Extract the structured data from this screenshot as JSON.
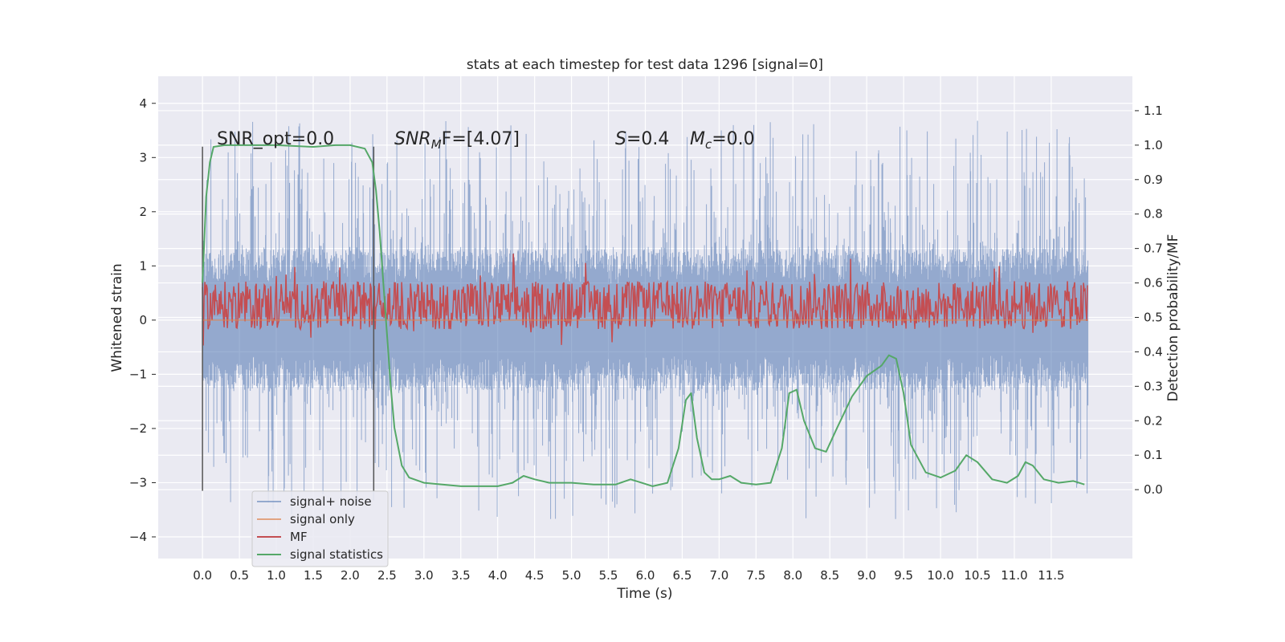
{
  "chart_data": {
    "type": "line",
    "title": "stats at each timestep for test data 1296 [signal=0]",
    "xlabel": "Time (s)",
    "ylabel": "Whitened strain",
    "y2label": "Detection probability/MF",
    "xlim": [
      -0.6,
      12.6
    ],
    "ylim": [
      -4.4,
      4.5
    ],
    "y2lim": [
      -0.2,
      1.2
    ],
    "grid": true,
    "legend_position": "lower-left",
    "x_ticks": [
      "0.0",
      "0.5",
      "1.0",
      "1.5",
      "2.0",
      "2.5",
      "3.0",
      "3.5",
      "4.0",
      "4.5",
      "5.0",
      "5.5",
      "6.0",
      "6.5",
      "7.0",
      "7.5",
      "8.0",
      "8.5",
      "9.0",
      "9.5",
      "10.0",
      "10.5",
      "11.0",
      "11.5"
    ],
    "y_ticks": [
      "4",
      "3",
      "2",
      "1",
      "0",
      "−1",
      "−2",
      "−3",
      "−4"
    ],
    "y2_ticks": [
      "1.1",
      "1.0",
      "0.9",
      "0.8",
      "0.7",
      "0.6",
      "0.5",
      "0.4",
      "0.3",
      "0.2",
      "0.1",
      "0.0"
    ],
    "annotations": {
      "snr_opt": "SNR_opt=0.0",
      "snr_mf_name": "SNR",
      "snr_mf_sub": "M",
      "snr_mf_rest": "F=[4.07]",
      "s_name": "S",
      "s_rest": "=0.4",
      "mc_name": "M",
      "mc_sub": "c",
      "mc_rest": "=0.0"
    },
    "vertical_markers": [
      {
        "x": 0.0,
        "y": [
          -3.15,
          3.2
        ]
      },
      {
        "x": 2.32,
        "y": [
          -3.15,
          3.2
        ]
      }
    ],
    "series": [
      {
        "name": "signal+ noise",
        "color": "#4c72b0",
        "axis": "left",
        "kind": "noise",
        "x_range": [
          0.0,
          12.0
        ],
        "envelope_typical": 1.3,
        "envelope_peak": 4.1
      },
      {
        "name": "signal only",
        "color": "#dd8452",
        "axis": "left",
        "x": [
          0.0,
          12.0
        ],
        "y": [
          0.0,
          0.0
        ]
      },
      {
        "name": "MF",
        "color": "#c44e52",
        "axis": "right",
        "kind": "noise",
        "x_range": [
          0.0,
          12.0
        ],
        "baseline": 0.535,
        "spread": 0.1
      },
      {
        "name": "signal statistics",
        "color": "#55a868",
        "axis": "right",
        "x": [
          0.0,
          0.05,
          0.1,
          0.15,
          0.3,
          0.5,
          1.0,
          1.5,
          1.8,
          2.0,
          2.2,
          2.3,
          2.35,
          2.4,
          2.45,
          2.5,
          2.55,
          2.6,
          2.7,
          2.8,
          3.0,
          3.5,
          4.0,
          4.2,
          4.35,
          4.5,
          4.7,
          5.0,
          5.3,
          5.6,
          5.8,
          5.95,
          6.1,
          6.3,
          6.45,
          6.55,
          6.62,
          6.7,
          6.8,
          6.9,
          7.0,
          7.15,
          7.3,
          7.5,
          7.7,
          7.85,
          7.95,
          8.05,
          8.15,
          8.3,
          8.45,
          8.6,
          8.8,
          9.0,
          9.2,
          9.3,
          9.4,
          9.5,
          9.6,
          9.8,
          10.0,
          10.2,
          10.35,
          10.5,
          10.7,
          10.9,
          11.05,
          11.15,
          11.25,
          11.4,
          11.6,
          11.8,
          11.95
        ],
        "y": [
          0.6,
          0.85,
          0.95,
          0.995,
          1.0,
          1.0,
          1.0,
          0.995,
          1.0,
          1.0,
          0.99,
          0.95,
          0.87,
          0.75,
          0.6,
          0.45,
          0.3,
          0.18,
          0.07,
          0.035,
          0.02,
          0.01,
          0.01,
          0.02,
          0.04,
          0.03,
          0.02,
          0.02,
          0.015,
          0.015,
          0.03,
          0.02,
          0.01,
          0.02,
          0.12,
          0.26,
          0.28,
          0.15,
          0.05,
          0.03,
          0.03,
          0.04,
          0.02,
          0.015,
          0.02,
          0.12,
          0.28,
          0.29,
          0.2,
          0.12,
          0.11,
          0.18,
          0.27,
          0.33,
          0.36,
          0.39,
          0.38,
          0.28,
          0.13,
          0.05,
          0.035,
          0.055,
          0.1,
          0.08,
          0.03,
          0.02,
          0.04,
          0.08,
          0.07,
          0.03,
          0.02,
          0.025,
          0.015
        ]
      }
    ]
  }
}
